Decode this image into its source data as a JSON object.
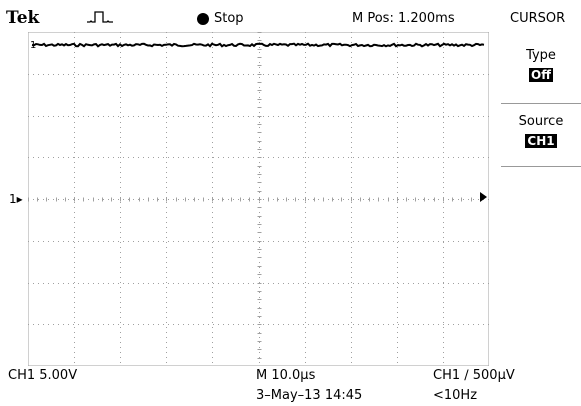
{
  "header": {
    "brand": "Tek",
    "trigger_icon": "pulse-trigger-icon",
    "run_state": "Stop",
    "horizontal_position": "M Pos: 1.200ms",
    "menu_title": "CURSOR"
  },
  "side_menu": {
    "items": [
      {
        "label": "Type",
        "value": "Off"
      },
      {
        "label": "Source",
        "value": "CH1"
      }
    ]
  },
  "display": {
    "channel_marker": "1",
    "ground_marker_icon": "arrow-left-icon",
    "trigger_level_icon": "arrow-right-icon",
    "trace_color": "#000000",
    "grid_color": "#a0a0a0"
  },
  "status": {
    "ch1_scale": "CH1  5.00V",
    "timebase": "M 10.0µs",
    "trigger": "CH1 ∕ 500µV",
    "datetime": "3–May–13 14:45",
    "trigger_frequency": "<10Hz"
  }
}
